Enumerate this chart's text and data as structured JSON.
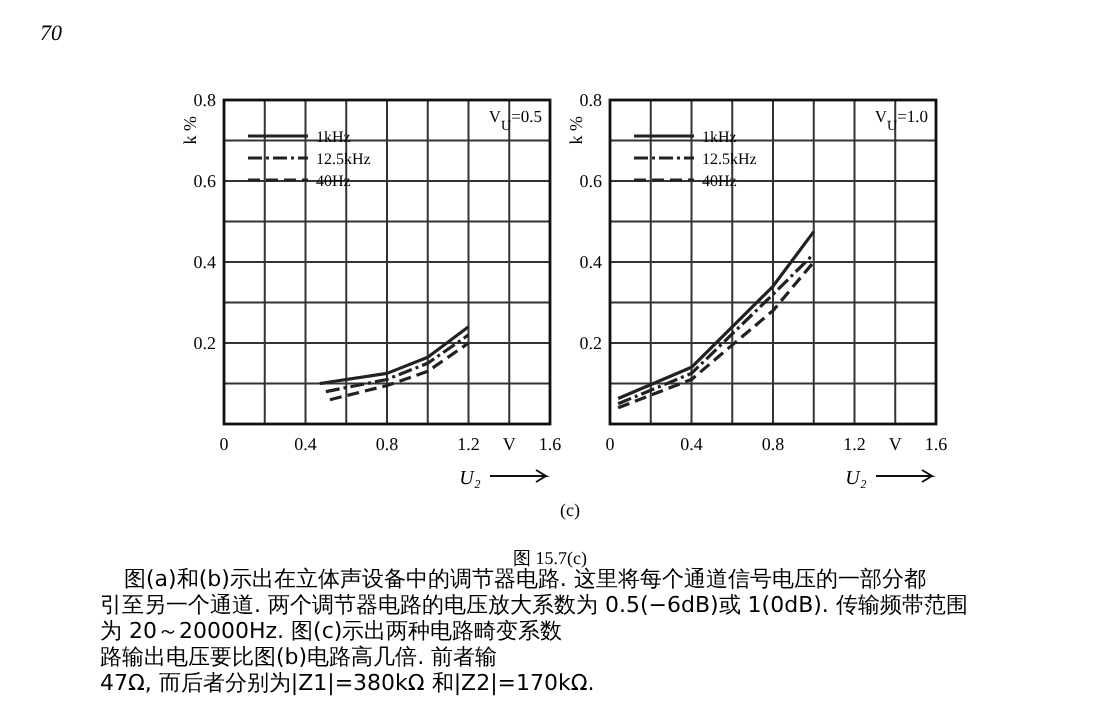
{
  "chart_data": [
    {
      "type": "line",
      "xlabel": "U₂",
      "ylabel": "k %",
      "annotations": [
        "V$_{U}$=0.5"
      ],
      "xlim": [
        0,
        1.6
      ],
      "ylim": [
        0,
        0.8
      ],
      "xticks": [
        0,
        {
          "value": 0.2,
          "label": null
        },
        0.4,
        {
          "value": 0.6,
          "label": null
        },
        0.8,
        {
          "value": 1.0,
          "label": null
        },
        1.2,
        {
          "value": 1.4,
          "label": "V"
        },
        1.6
      ],
      "yticks": [
        {
          "value": 0,
          "label": null
        },
        {
          "value": 0.1,
          "label": null
        },
        0.2,
        {
          "value": 0.3,
          "label": null
        },
        0.4,
        {
          "value": 0.5,
          "label": null
        },
        0.6,
        {
          "value": 0.7,
          "label": null
        },
        0.8
      ],
      "grid": true,
      "legend": "top left",
      "marker": "none",
      "series": [
        {
          "name": "1kHz",
          "color": "#222222",
          "line_style": "solid",
          "x": [
            0.47,
            0.8,
            1.0,
            1.2
          ],
          "values": [
            0.1,
            0.125,
            0.165,
            0.24
          ]
        },
        {
          "name": "12.5kHz",
          "color": "#222222",
          "line_style": "dashdot",
          "x": [
            0.5,
            0.8,
            1.0,
            1.2
          ],
          "values": [
            0.08,
            0.11,
            0.15,
            0.22
          ]
        },
        {
          "name": "40Hz",
          "color": "#222222",
          "line_style": "dashed",
          "x": [
            0.52,
            0.8,
            1.0,
            1.2
          ],
          "values": [
            0.06,
            0.095,
            0.13,
            0.2
          ]
        }
      ]
    },
    {
      "type": "line",
      "xlabel": "U₂",
      "ylabel": "k %",
      "annotations": [
        "V$_{U}$=1.0"
      ],
      "xlim": [
        0,
        1.6
      ],
      "ylim": [
        0,
        0.8
      ],
      "xticks": [
        0,
        {
          "value": 0.2,
          "label": null
        },
        0.4,
        {
          "value": 0.6,
          "label": null
        },
        0.8,
        {
          "value": 1.0,
          "label": null
        },
        1.2,
        {
          "value": 1.4,
          "label": "V"
        },
        1.6
      ],
      "yticks": [
        {
          "value": 0,
          "label": null
        },
        {
          "value": 0.1,
          "label": null
        },
        0.2,
        {
          "value": 0.3,
          "label": null
        },
        0.4,
        {
          "value": 0.5,
          "label": null
        },
        0.6,
        {
          "value": 0.7,
          "label": null
        },
        0.8
      ],
      "grid": true,
      "legend": "top left",
      "marker": "none",
      "series": [
        {
          "name": "1kHz",
          "color": "#222222",
          "line_style": "solid",
          "x": [
            0.04,
            0.4,
            0.8,
            1.0
          ],
          "values": [
            0.063,
            0.14,
            0.34,
            0.475
          ]
        },
        {
          "name": "12.5kHz",
          "color": "#222222",
          "line_style": "dashdot",
          "x": [
            0.04,
            0.4,
            0.8,
            1.0
          ],
          "values": [
            0.05,
            0.125,
            0.32,
            0.42
          ]
        },
        {
          "name": "40Hz",
          "color": "#222222",
          "line_style": "dashed",
          "x": [
            0.04,
            0.4,
            0.8,
            1.0
          ],
          "values": [
            0.04,
            0.11,
            0.28,
            0.4
          ]
        }
      ]
    },
    {
      "type": "other",
      "annotations": [
        "70",
        "(c)",
        "图 15.7(c)",
        "图(a)和(b)示出在立体声设备中的调节器电路. 这里将每个通道信号电压的一部分都",
        "引至另一个通道. 两个调节器电路的电压放大系数为 0.5(−6dB)或 1(0dB). 传输频带范围",
        "为 20～20000Hz. 图(c)示出两种电路畸变系数",
        "路输出电压要比图(b)电路高几倍. 前者输",
        "47Ω, 而后者分别为|Z1|=380kΩ 和|Z2|=170kΩ."
      ]
    }
  ]
}
